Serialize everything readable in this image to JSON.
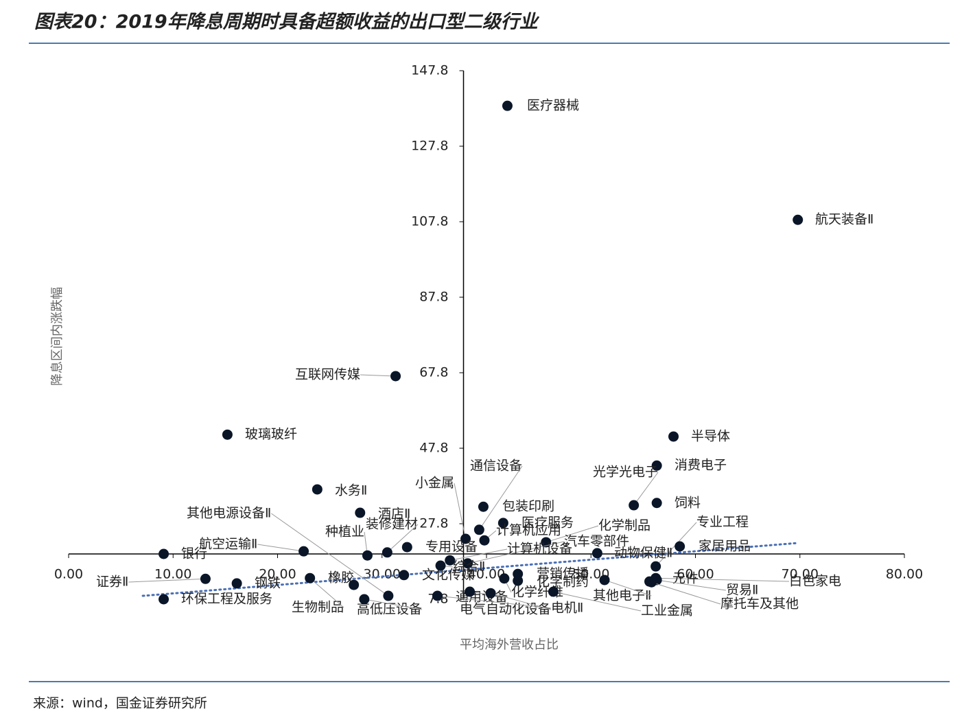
{
  "chart_data": {
    "type": "scatter",
    "title": "图表20：2019年降息周期时具备超额收益的出口型二级行业",
    "x_label": "平均海外营收占比",
    "y_label": "降息区间内涨跌幅",
    "source": "来源：wind，国金证券研究所",
    "xlim": [
      0,
      80
    ],
    "ylim": [
      7.8,
      147.8
    ],
    "xticks": [
      {
        "value": 0,
        "label": "0.00"
      },
      {
        "value": 10,
        "label": "10.00"
      },
      {
        "value": 20,
        "label": "20.00"
      },
      {
        "value": 30,
        "label": "30.00"
      },
      {
        "value": 40,
        "label": "40.00"
      },
      {
        "value": 50,
        "label": "50.00"
      },
      {
        "value": 60,
        "label": "60.00"
      },
      {
        "value": 70,
        "label": "70.00"
      },
      {
        "value": 80,
        "label": "80.00"
      }
    ],
    "yticks": [
      7.8,
      27.8,
      47.8,
      67.8,
      87.8,
      107.8,
      127.8,
      147.8
    ],
    "xaxis_at": 19.8,
    "yaxis_at": 37.8,
    "color": "#0a1628",
    "trend_color": "#4a6fb5",
    "trendline": {
      "x": [
        7.1,
        69.8
      ],
      "y": [
        8.7,
        22.7
      ]
    },
    "points": [
      {
        "label": "医疗器械",
        "x": 42.0,
        "y": 138.5
      },
      {
        "label": "航天装备Ⅱ",
        "x": 69.8,
        "y": 108.3
      },
      {
        "label": "互联网传媒",
        "x": 31.3,
        "y": 66.9
      },
      {
        "label": "玻璃玻纤",
        "x": 15.2,
        "y": 51.4
      },
      {
        "label": "半导体",
        "x": 57.9,
        "y": 50.9
      },
      {
        "label": "消费电子",
        "x": 56.3,
        "y": 43.2
      },
      {
        "label": "光学光电子",
        "x": 54.1,
        "y": 32.7
      },
      {
        "label": "饲料",
        "x": 56.3,
        "y": 33.3
      },
      {
        "label": "水务Ⅱ",
        "x": 23.8,
        "y": 36.9
      },
      {
        "label": "酒店Ⅱ",
        "x": 27.9,
        "y": 30.7
      },
      {
        "label": "其他电源设备Ⅱ",
        "x": 30.6,
        "y": 8.7
      },
      {
        "label": "包装印刷",
        "x": 39.7,
        "y": 32.3
      },
      {
        "label": "通信设备",
        "x": 39.3,
        "y": 26.2
      },
      {
        "label": "医疗服务",
        "x": 41.6,
        "y": 28.0
      },
      {
        "label": "小金属",
        "x": 38.0,
        "y": 23.8
      },
      {
        "label": "计算机应用",
        "x": 39.8,
        "y": 23.4
      },
      {
        "label": "化学制品",
        "x": 45.7,
        "y": 22.9
      },
      {
        "label": "专业工程",
        "x": 56.2,
        "y": 16.5
      },
      {
        "label": "家居用品",
        "x": 58.5,
        "y": 21.8
      },
      {
        "label": "动物保健Ⅱ",
        "x": 50.6,
        "y": 20.0
      },
      {
        "label": "汽车零部件",
        "x": 38.2,
        "y": 17.3
      },
      {
        "label": "计算机设备",
        "x": 36.5,
        "y": 18.1
      },
      {
        "label": "专用设备",
        "x": 32.4,
        "y": 21.6
      },
      {
        "label": "装修建材",
        "x": 30.5,
        "y": 20.2
      },
      {
        "label": "种植业",
        "x": 28.6,
        "y": 19.4
      },
      {
        "label": "航空运输Ⅱ",
        "x": 22.5,
        "y": 20.5
      },
      {
        "label": "银行",
        "x": 9.1,
        "y": 19.8
      },
      {
        "label": "证券Ⅱ",
        "x": 13.1,
        "y": 13.2
      },
      {
        "label": "钢铁",
        "x": 16.1,
        "y": 12.0
      },
      {
        "label": "环保工程及服务",
        "x": 9.1,
        "y": 7.8
      },
      {
        "label": "生物制品",
        "x": 23.1,
        "y": 13.4
      },
      {
        "label": "橡胶",
        "x": 27.3,
        "y": 11.6
      },
      {
        "label": "高低压设备",
        "x": 28.3,
        "y": 7.8
      },
      {
        "label": "文化传媒",
        "x": 32.1,
        "y": 14.2
      },
      {
        "label": "综合Ⅱ",
        "x": 35.6,
        "y": 16.7
      },
      {
        "label": "营销传播",
        "x": 43.0,
        "y": 14.5
      },
      {
        "label": "化学制药",
        "x": 43.0,
        "y": 12.7
      },
      {
        "label": "化学纤维",
        "x": 41.7,
        "y": 13.3
      },
      {
        "label": "通用设备",
        "x": 38.4,
        "y": 9.8
      },
      {
        "label": "电气自动化设备",
        "x": 40.4,
        "y": 9.4
      },
      {
        "label": "白色家电",
        "x": 56.2,
        "y": 13.4
      },
      {
        "label": "元件",
        "x": 55.6,
        "y": 12.5
      },
      {
        "label": "贸易Ⅱ",
        "x": 56.3,
        "y": 12.9
      },
      {
        "label": "摩托车及其他",
        "x": 55.8,
        "y": 12.3
      },
      {
        "label": "其他电子Ⅱ",
        "x": 51.3,
        "y": 12.9
      },
      {
        "label": "工业金属",
        "x": 46.4,
        "y": 9.8
      },
      {
        "label": "电机Ⅱ",
        "x": 35.3,
        "y": 8.7
      }
    ]
  }
}
